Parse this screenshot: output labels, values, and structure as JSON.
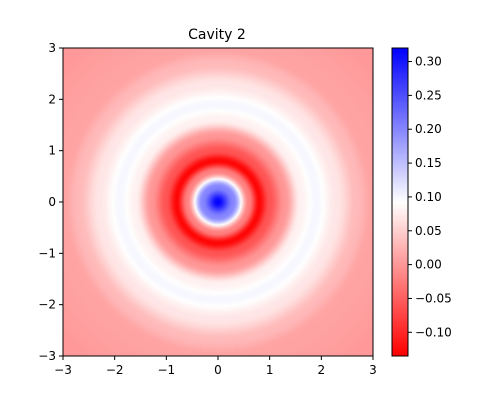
{
  "chart_data": {
    "type": "heatmap",
    "title": "Cavity 2",
    "xlabel": "",
    "ylabel": "",
    "xlim": [
      -3,
      3
    ],
    "ylim": [
      -3,
      3
    ],
    "x_ticks": [
      -3,
      -2,
      -1,
      0,
      1,
      2,
      3
    ],
    "y_ticks": [
      -3,
      -2,
      -1,
      0,
      1,
      2,
      3
    ],
    "x_tick_labels": [
      "−3",
      "−2",
      "−1",
      "0",
      "1",
      "2",
      "3"
    ],
    "y_tick_labels": [
      "−3",
      "−2",
      "−1",
      "0",
      "1",
      "2",
      "3"
    ],
    "grid": false,
    "colormap": {
      "name": "bwr",
      "low_color": "#ff0000",
      "mid_color": "#ffffff",
      "high_color": "#0000ff",
      "vmin": -0.135,
      "vmax": 0.32
    },
    "colorbar": {
      "ticks": [
        0.3,
        0.25,
        0.2,
        0.15,
        0.1,
        0.05,
        0.0,
        -0.05,
        -0.1
      ],
      "tick_labels": [
        "0.30",
        "0.25",
        "0.20",
        "0.15",
        "0.10",
        "0.05",
        "0.00",
        "−0.05",
        "−0.10"
      ]
    },
    "field": {
      "description_of_values": "radially symmetric value vs radius r",
      "radius": [
        0.0,
        0.3,
        0.6,
        0.8,
        1.0,
        1.3,
        1.6,
        1.9,
        2.3,
        2.7,
        3.0,
        4.3
      ],
      "value": [
        0.32,
        0.2,
        -0.02,
        -0.13,
        -0.06,
        0.0,
        0.08,
        0.1,
        0.07,
        0.03,
        0.01,
        0.0
      ]
    }
  }
}
